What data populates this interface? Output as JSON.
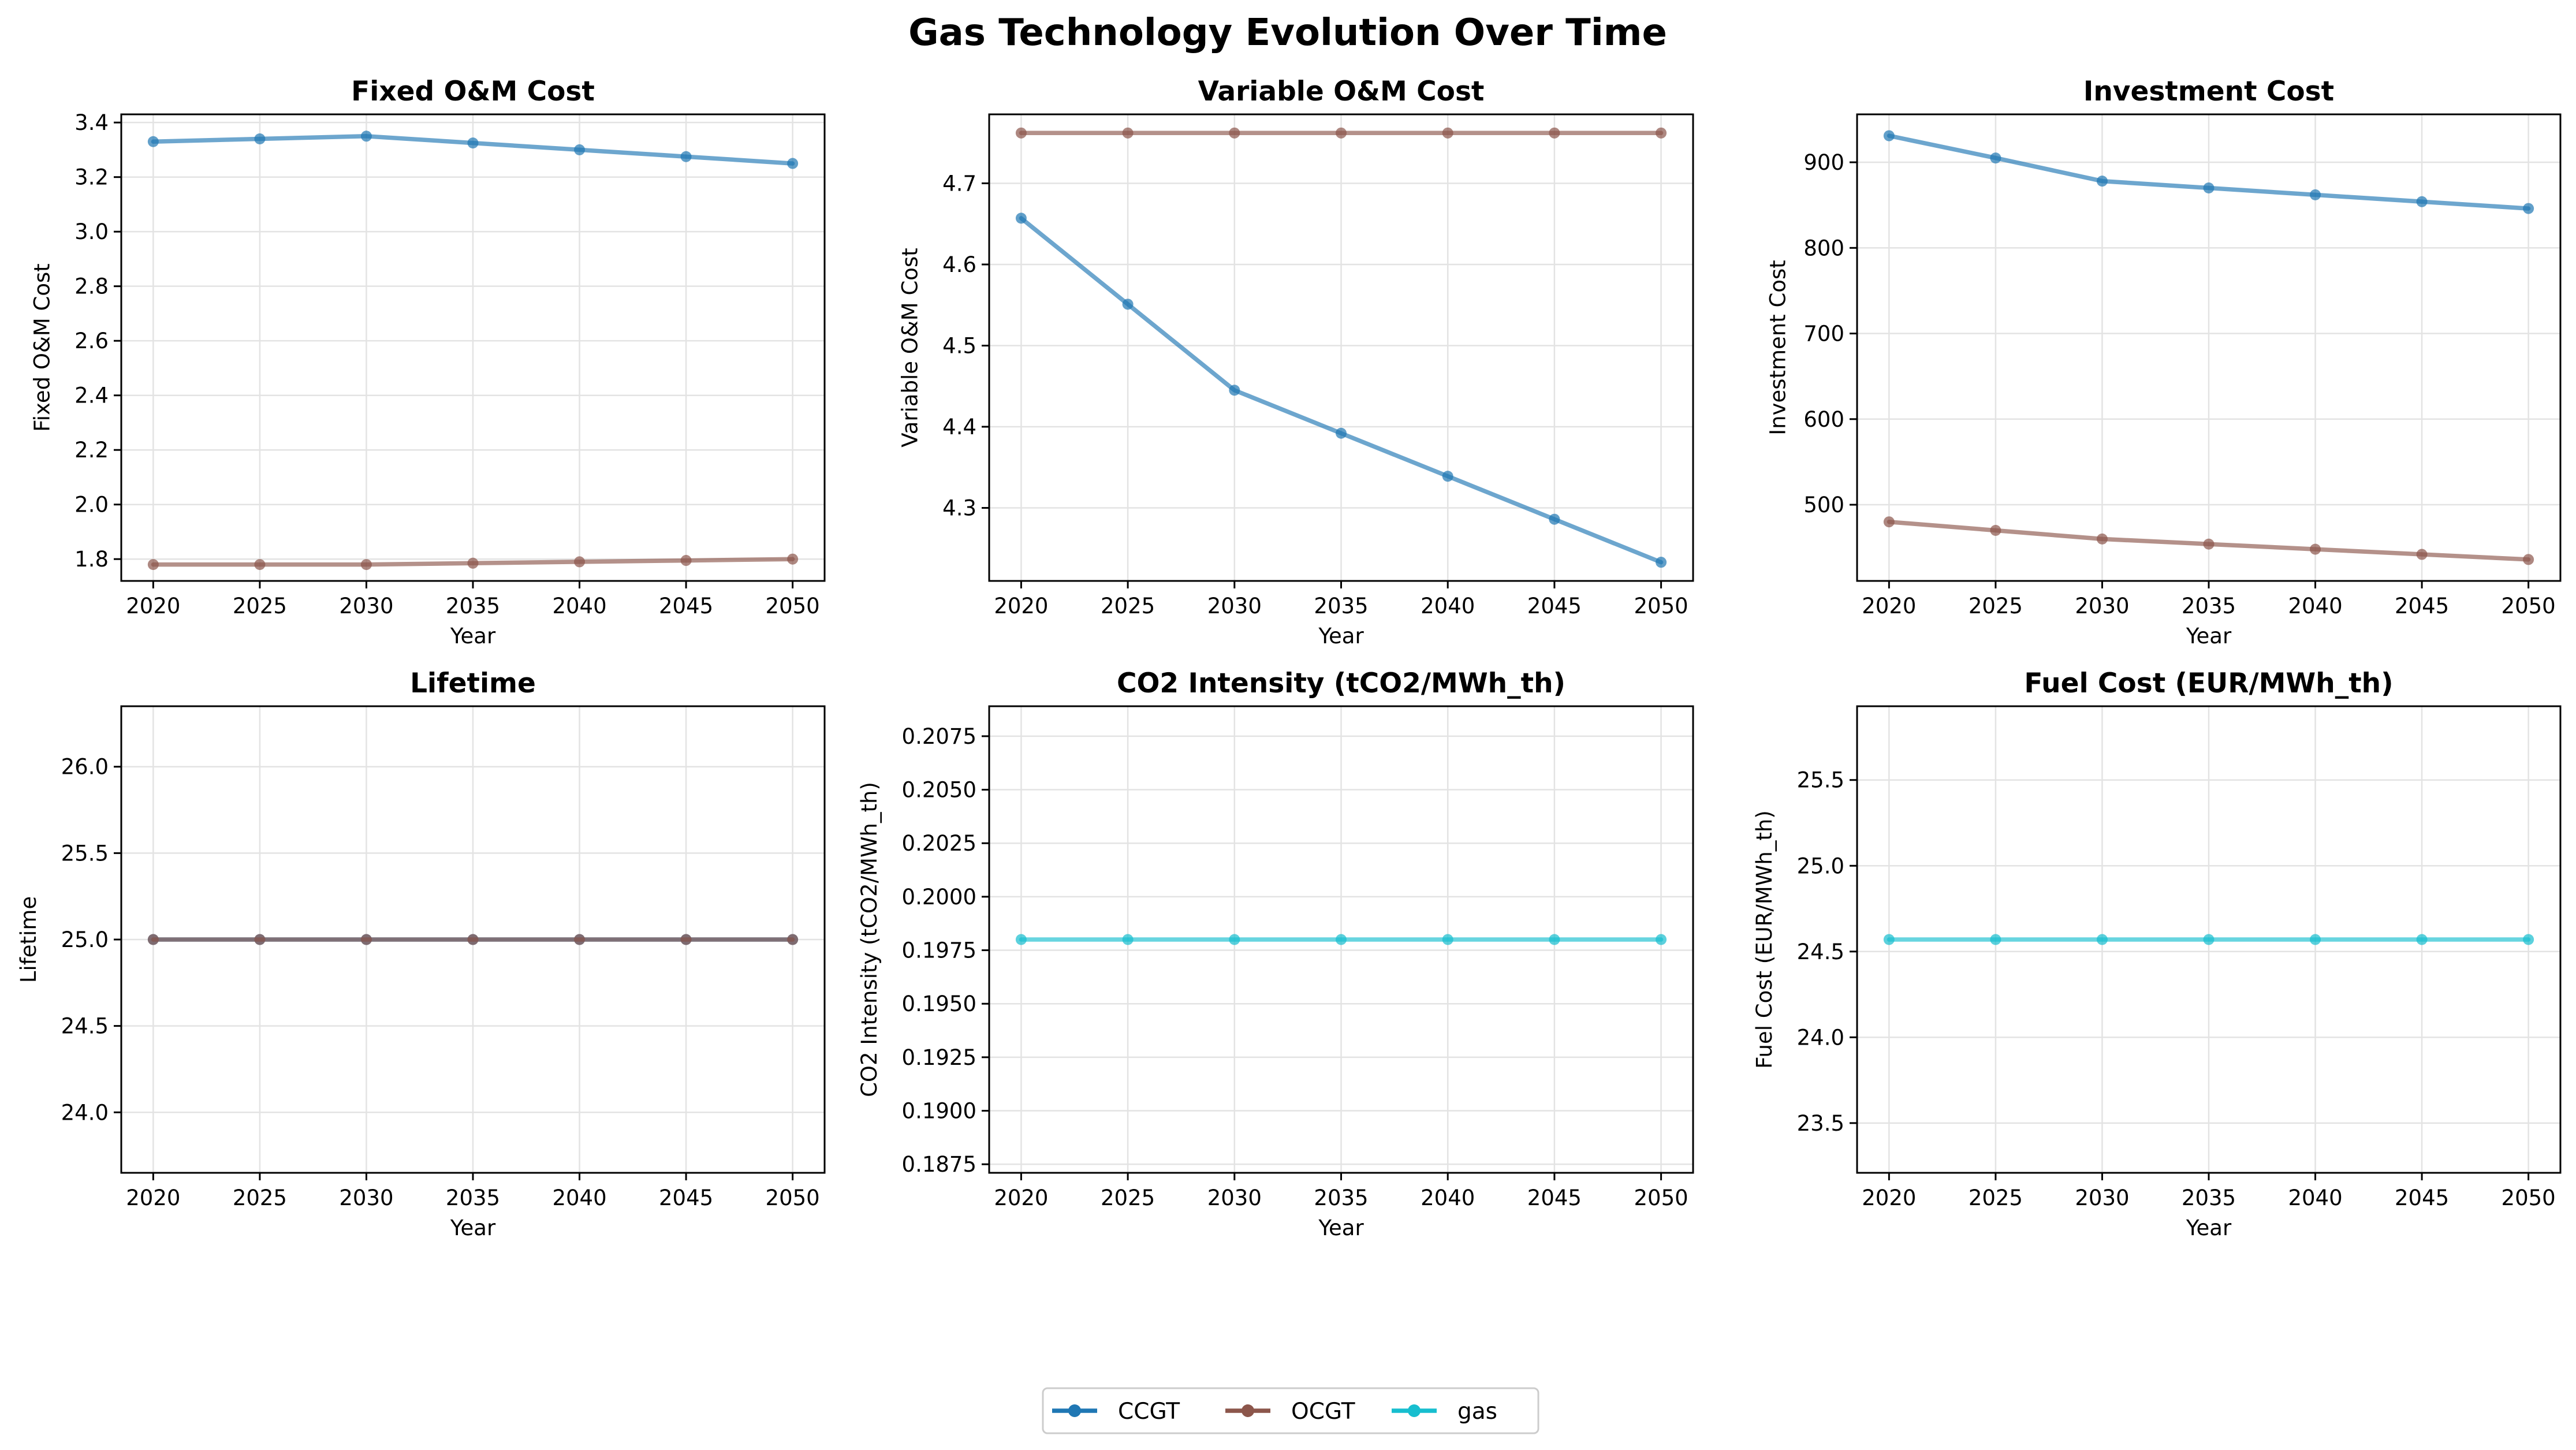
{
  "figure": {
    "title": "Gas Technology Evolution Over Time"
  },
  "legend": {
    "placement": "bottom-center",
    "entries": [
      {
        "label": "CCGT",
        "color": "#1f77b4"
      },
      {
        "label": "OCGT",
        "color": "#8c564b"
      },
      {
        "label": "gas",
        "color": "#17becf"
      }
    ]
  },
  "chart_data": [
    {
      "type": "line",
      "title": "Fixed O&M Cost",
      "xlabel": "Year",
      "ylabel": "Fixed O&M Cost",
      "x": [
        2020,
        2025,
        2030,
        2035,
        2040,
        2045,
        2050
      ],
      "xlim": [
        2018.5,
        2051.5
      ],
      "ylim": [
        1.72,
        3.43
      ],
      "yticks": [
        1.8,
        2.0,
        2.2,
        2.4,
        2.6,
        2.8,
        3.0,
        3.2,
        3.4
      ],
      "ytick_labels": [
        "1.8",
        "2.0",
        "2.2",
        "2.4",
        "2.6",
        "2.8",
        "3.0",
        "3.2",
        "3.4"
      ],
      "grid": true,
      "series": [
        {
          "name": "CCGT",
          "color": "#1f77b4",
          "values": [
            3.33,
            3.34,
            3.35,
            3.325,
            3.3,
            3.275,
            3.25
          ]
        },
        {
          "name": "OCGT",
          "color": "#8c564b",
          "values": [
            1.78,
            1.78,
            1.78,
            1.785,
            1.79,
            1.795,
            1.8
          ]
        }
      ]
    },
    {
      "type": "line",
      "title": "Variable O&M Cost",
      "xlabel": "Year",
      "ylabel": "Variable O&M Cost",
      "x": [
        2020,
        2025,
        2030,
        2035,
        2040,
        2045,
        2050
      ],
      "xlim": [
        2018.5,
        2051.5
      ],
      "ylim": [
        4.21,
        4.785
      ],
      "yticks": [
        4.3,
        4.4,
        4.5,
        4.6,
        4.7
      ],
      "ytick_labels": [
        "4.3",
        "4.4",
        "4.5",
        "4.6",
        "4.7"
      ],
      "grid": true,
      "series": [
        {
          "name": "CCGT",
          "color": "#1f77b4",
          "values": [
            4.657,
            4.551,
            4.445,
            4.392,
            4.339,
            4.286,
            4.233
          ]
        },
        {
          "name": "OCGT",
          "color": "#8c564b",
          "values": [
            4.762,
            4.762,
            4.762,
            4.762,
            4.762,
            4.762,
            4.762
          ]
        }
      ]
    },
    {
      "type": "line",
      "title": "Investment Cost",
      "xlabel": "Year",
      "ylabel": "Investment Cost",
      "x": [
        2020,
        2025,
        2030,
        2035,
        2040,
        2045,
        2050
      ],
      "xlim": [
        2018.5,
        2051.5
      ],
      "ylim": [
        411,
        956
      ],
      "yticks": [
        500,
        600,
        700,
        800,
        900
      ],
      "ytick_labels": [
        "500",
        "600",
        "700",
        "800",
        "900"
      ],
      "grid": true,
      "series": [
        {
          "name": "CCGT",
          "color": "#1f77b4",
          "values": [
            931,
            905,
            878,
            870,
            862,
            854,
            846
          ]
        },
        {
          "name": "OCGT",
          "color": "#8c564b",
          "values": [
            480,
            470,
            460,
            454,
            448,
            442,
            436
          ]
        }
      ]
    },
    {
      "type": "line",
      "title": "Lifetime",
      "xlabel": "Year",
      "ylabel": "Lifetime",
      "x": [
        2020,
        2025,
        2030,
        2035,
        2040,
        2045,
        2050
      ],
      "xlim": [
        2018.5,
        2051.5
      ],
      "ylim": [
        23.65,
        26.35
      ],
      "yticks": [
        24.0,
        24.5,
        25.0,
        25.5,
        26.0
      ],
      "ytick_labels": [
        "24.0",
        "24.5",
        "25.0",
        "25.5",
        "26.0"
      ],
      "grid": true,
      "series": [
        {
          "name": "CCGT",
          "color": "#1f77b4",
          "values": [
            25,
            25,
            25,
            25,
            25,
            25,
            25
          ]
        },
        {
          "name": "OCGT",
          "color": "#8c564b",
          "values": [
            25,
            25,
            25,
            25,
            25,
            25,
            25
          ]
        }
      ]
    },
    {
      "type": "line",
      "title": "CO2 Intensity (tCO2/MWh_th)",
      "xlabel": "Year",
      "ylabel": "CO2 Intensity (tCO2/MWh_th)",
      "x": [
        2020,
        2025,
        2030,
        2035,
        2040,
        2045,
        2050
      ],
      "xlim": [
        2018.5,
        2051.5
      ],
      "ylim": [
        0.1871,
        0.2089
      ],
      "yticks": [
        0.1875,
        0.19,
        0.1925,
        0.195,
        0.1975,
        0.2,
        0.2025,
        0.205,
        0.2075
      ],
      "ytick_labels": [
        "0.1875",
        "0.1900",
        "0.1925",
        "0.1950",
        "0.1975",
        "0.2000",
        "0.2025",
        "0.2050",
        "0.2075"
      ],
      "grid": true,
      "series": [
        {
          "name": "gas",
          "color": "#17becf",
          "values": [
            0.198,
            0.198,
            0.198,
            0.198,
            0.198,
            0.198,
            0.198
          ]
        }
      ]
    },
    {
      "type": "line",
      "title": "Fuel Cost (EUR/MWh_th)",
      "xlabel": "Year",
      "ylabel": "Fuel Cost (EUR/MWh_th)",
      "x": [
        2020,
        2025,
        2030,
        2035,
        2040,
        2045,
        2050
      ],
      "xlim": [
        2018.5,
        2051.5
      ],
      "ylim": [
        23.21,
        25.93
      ],
      "yticks": [
        23.5,
        24.0,
        24.5,
        25.0,
        25.5
      ],
      "ytick_labels": [
        "23.5",
        "24.0",
        "24.5",
        "25.0",
        "25.5"
      ],
      "grid": true,
      "series": [
        {
          "name": "gas",
          "color": "#17becf",
          "values": [
            24.57,
            24.57,
            24.57,
            24.57,
            24.57,
            24.57,
            24.57
          ]
        }
      ]
    }
  ]
}
